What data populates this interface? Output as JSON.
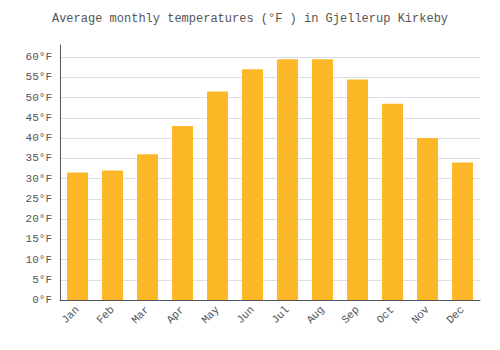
{
  "chart_data": {
    "type": "bar",
    "title": "Average monthly temperatures (°F ) in Gjellerup Kirkeby",
    "categories": [
      "Jan",
      "Feb",
      "Mar",
      "Apr",
      "May",
      "Jun",
      "Jul",
      "Aug",
      "Sep",
      "Oct",
      "Nov",
      "Dec"
    ],
    "values": [
      31.5,
      32.0,
      36.0,
      43.0,
      51.5,
      57.0,
      59.5,
      59.5,
      54.5,
      48.5,
      40.0,
      34.0
    ],
    "color": "#FDB827",
    "ylim": [
      0,
      63
    ],
    "yticks": [
      {
        "value": 0,
        "label": "0°F"
      },
      {
        "value": 5,
        "label": "5°F"
      },
      {
        "value": 10,
        "label": "10°F"
      },
      {
        "value": 15,
        "label": "15°F"
      },
      {
        "value": 20,
        "label": "20°F"
      },
      {
        "value": 25,
        "label": "25°F"
      },
      {
        "value": 30,
        "label": "30°F"
      },
      {
        "value": 35,
        "label": "35°F"
      },
      {
        "value": 40,
        "label": "40°F"
      },
      {
        "value": 45,
        "label": "45°F"
      },
      {
        "value": 50,
        "label": "50°F"
      },
      {
        "value": 55,
        "label": "55°F"
      },
      {
        "value": 60,
        "label": "60°F"
      }
    ],
    "grid": true
  }
}
